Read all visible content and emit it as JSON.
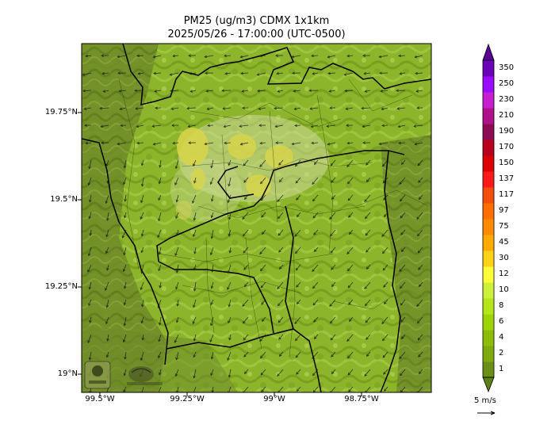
{
  "title": "PM25 (ug/m3) CDMX 1x1km",
  "subtitle": "2025/05/26 - 17:00:00 (UTC-0500)",
  "lat_ticks": [
    "19.75°N",
    "19.5°N",
    "19.25°N",
    "19°N"
  ],
  "lon_ticks": [
    "99.5°W",
    "99.25°W",
    "99°W",
    "98.75°W"
  ],
  "colorbar": {
    "labels": [
      "1",
      "2",
      "4",
      "6",
      "8",
      "10",
      "12",
      "30",
      "45",
      "75",
      "97",
      "117",
      "137",
      "150",
      "170",
      "190",
      "210",
      "230",
      "250",
      "350"
    ],
    "colors": [
      "#6a8f16",
      "#7eaa0e",
      "#8cbd0a",
      "#9ed40a",
      "#b5e61a",
      "#cdf03a",
      "#ffff3a",
      "#ffd21a",
      "#ffaa00",
      "#ff8c00",
      "#ff6e00",
      "#f24c0e",
      "#ff1a1a",
      "#dd0000",
      "#b8001c",
      "#8c0c54",
      "#b0108c",
      "#c81ed2",
      "#9a0aff",
      "#6a00b8"
    ]
  },
  "wind_reference": "5 m/s",
  "logos": [
    "SEDEMA",
    "SIMAT"
  ]
}
